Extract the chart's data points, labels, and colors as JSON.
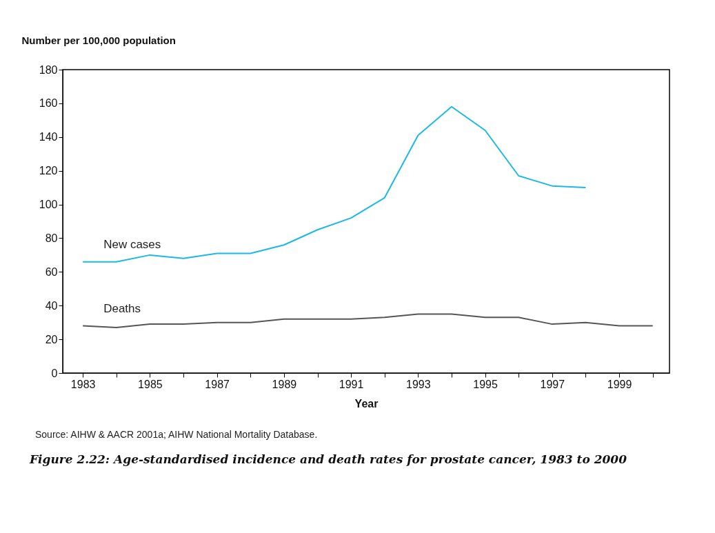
{
  "chart_data": {
    "type": "line",
    "ylabel": "Number per 100,000 population",
    "xlabel": "Year",
    "title": "Figure 2.22: Age-standardised incidence and death rates for prostate cancer, 1983 to 2000",
    "annotations": [
      "Source: AIHW & AACR 2001a; AIHW National Mortality Database."
    ],
    "x": [
      1983,
      1984,
      1985,
      1986,
      1987,
      1988,
      1989,
      1990,
      1991,
      1992,
      1993,
      1994,
      1995,
      1996,
      1997,
      1998,
      1999,
      2000
    ],
    "series": [
      {
        "name": "New cases",
        "color": "#1ab8ea",
        "values": [
          66,
          66,
          70,
          68,
          71,
          71,
          76,
          85,
          92,
          104,
          141,
          158,
          144,
          117,
          111,
          110,
          null,
          null
        ]
      },
      {
        "name": "Deaths",
        "color": "#555555",
        "values": [
          28,
          27,
          29,
          29,
          30,
          30,
          32,
          32,
          32,
          33,
          35,
          35,
          33,
          33,
          29,
          30,
          28,
          28
        ]
      }
    ],
    "xlim": [
      1982.4,
      2000.5
    ],
    "ylim": [
      0,
      180
    ],
    "xticks": [
      1983,
      {
        "value": 1984,
        "label": null
      },
      1985,
      {
        "value": 1986,
        "label": null
      },
      1987,
      {
        "value": 1988,
        "label": null
      },
      1989,
      {
        "value": 1990,
        "label": null
      },
      1991,
      {
        "value": 1992,
        "label": null
      },
      1993,
      {
        "value": 1994,
        "label": null
      },
      1995,
      {
        "value": 1996,
        "label": null
      },
      1997,
      {
        "value": 1998,
        "label": null
      },
      1999,
      {
        "value": 2000,
        "label": null
      }
    ],
    "yticks": [
      0,
      20,
      40,
      60,
      80,
      100,
      120,
      140,
      160,
      180
    ],
    "grid": false,
    "legend": false,
    "marker": "none",
    "line_style": "solid"
  }
}
